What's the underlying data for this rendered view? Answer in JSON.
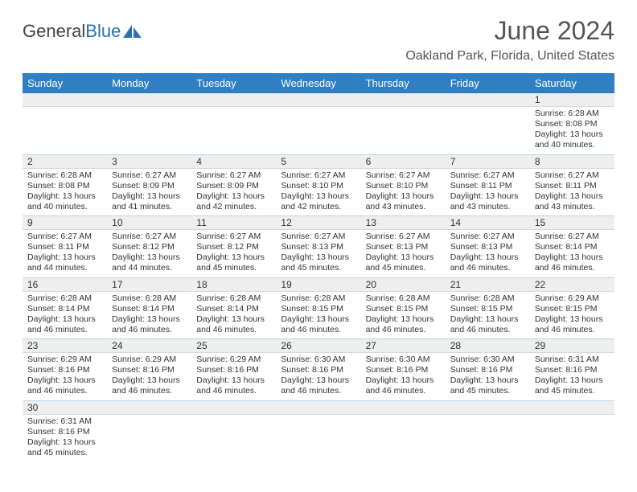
{
  "brand": {
    "part1": "General",
    "part2": "Blue"
  },
  "title": "June 2024",
  "location": "Oakland Park, Florida, United States",
  "colors": {
    "header_bg": "#2f7fc2",
    "header_text": "#ffffff",
    "grid_border": "#c0d4e6",
    "daynum_bg": "#eeeeee",
    "text": "#333333",
    "brand_accent": "#2b6fb6"
  },
  "weekdays": [
    "Sunday",
    "Monday",
    "Tuesday",
    "Wednesday",
    "Thursday",
    "Friday",
    "Saturday"
  ],
  "weeks": [
    [
      null,
      null,
      null,
      null,
      null,
      null,
      {
        "n": "1",
        "sunrise": "Sunrise: 6:28 AM",
        "sunset": "Sunset: 8:08 PM",
        "daylight": "Daylight: 13 hours and 40 minutes."
      }
    ],
    [
      {
        "n": "2",
        "sunrise": "Sunrise: 6:28 AM",
        "sunset": "Sunset: 8:08 PM",
        "daylight": "Daylight: 13 hours and 40 minutes."
      },
      {
        "n": "3",
        "sunrise": "Sunrise: 6:27 AM",
        "sunset": "Sunset: 8:09 PM",
        "daylight": "Daylight: 13 hours and 41 minutes."
      },
      {
        "n": "4",
        "sunrise": "Sunrise: 6:27 AM",
        "sunset": "Sunset: 8:09 PM",
        "daylight": "Daylight: 13 hours and 42 minutes."
      },
      {
        "n": "5",
        "sunrise": "Sunrise: 6:27 AM",
        "sunset": "Sunset: 8:10 PM",
        "daylight": "Daylight: 13 hours and 42 minutes."
      },
      {
        "n": "6",
        "sunrise": "Sunrise: 6:27 AM",
        "sunset": "Sunset: 8:10 PM",
        "daylight": "Daylight: 13 hours and 43 minutes."
      },
      {
        "n": "7",
        "sunrise": "Sunrise: 6:27 AM",
        "sunset": "Sunset: 8:11 PM",
        "daylight": "Daylight: 13 hours and 43 minutes."
      },
      {
        "n": "8",
        "sunrise": "Sunrise: 6:27 AM",
        "sunset": "Sunset: 8:11 PM",
        "daylight": "Daylight: 13 hours and 43 minutes."
      }
    ],
    [
      {
        "n": "9",
        "sunrise": "Sunrise: 6:27 AM",
        "sunset": "Sunset: 8:11 PM",
        "daylight": "Daylight: 13 hours and 44 minutes."
      },
      {
        "n": "10",
        "sunrise": "Sunrise: 6:27 AM",
        "sunset": "Sunset: 8:12 PM",
        "daylight": "Daylight: 13 hours and 44 minutes."
      },
      {
        "n": "11",
        "sunrise": "Sunrise: 6:27 AM",
        "sunset": "Sunset: 8:12 PM",
        "daylight": "Daylight: 13 hours and 45 minutes."
      },
      {
        "n": "12",
        "sunrise": "Sunrise: 6:27 AM",
        "sunset": "Sunset: 8:13 PM",
        "daylight": "Daylight: 13 hours and 45 minutes."
      },
      {
        "n": "13",
        "sunrise": "Sunrise: 6:27 AM",
        "sunset": "Sunset: 8:13 PM",
        "daylight": "Daylight: 13 hours and 45 minutes."
      },
      {
        "n": "14",
        "sunrise": "Sunrise: 6:27 AM",
        "sunset": "Sunset: 8:13 PM",
        "daylight": "Daylight: 13 hours and 46 minutes."
      },
      {
        "n": "15",
        "sunrise": "Sunrise: 6:27 AM",
        "sunset": "Sunset: 8:14 PM",
        "daylight": "Daylight: 13 hours and 46 minutes."
      }
    ],
    [
      {
        "n": "16",
        "sunrise": "Sunrise: 6:28 AM",
        "sunset": "Sunset: 8:14 PM",
        "daylight": "Daylight: 13 hours and 46 minutes."
      },
      {
        "n": "17",
        "sunrise": "Sunrise: 6:28 AM",
        "sunset": "Sunset: 8:14 PM",
        "daylight": "Daylight: 13 hours and 46 minutes."
      },
      {
        "n": "18",
        "sunrise": "Sunrise: 6:28 AM",
        "sunset": "Sunset: 8:14 PM",
        "daylight": "Daylight: 13 hours and 46 minutes."
      },
      {
        "n": "19",
        "sunrise": "Sunrise: 6:28 AM",
        "sunset": "Sunset: 8:15 PM",
        "daylight": "Daylight: 13 hours and 46 minutes."
      },
      {
        "n": "20",
        "sunrise": "Sunrise: 6:28 AM",
        "sunset": "Sunset: 8:15 PM",
        "daylight": "Daylight: 13 hours and 46 minutes."
      },
      {
        "n": "21",
        "sunrise": "Sunrise: 6:28 AM",
        "sunset": "Sunset: 8:15 PM",
        "daylight": "Daylight: 13 hours and 46 minutes."
      },
      {
        "n": "22",
        "sunrise": "Sunrise: 6:29 AM",
        "sunset": "Sunset: 8:15 PM",
        "daylight": "Daylight: 13 hours and 46 minutes."
      }
    ],
    [
      {
        "n": "23",
        "sunrise": "Sunrise: 6:29 AM",
        "sunset": "Sunset: 8:16 PM",
        "daylight": "Daylight: 13 hours and 46 minutes."
      },
      {
        "n": "24",
        "sunrise": "Sunrise: 6:29 AM",
        "sunset": "Sunset: 8:16 PM",
        "daylight": "Daylight: 13 hours and 46 minutes."
      },
      {
        "n": "25",
        "sunrise": "Sunrise: 6:29 AM",
        "sunset": "Sunset: 8:16 PM",
        "daylight": "Daylight: 13 hours and 46 minutes."
      },
      {
        "n": "26",
        "sunrise": "Sunrise: 6:30 AM",
        "sunset": "Sunset: 8:16 PM",
        "daylight": "Daylight: 13 hours and 46 minutes."
      },
      {
        "n": "27",
        "sunrise": "Sunrise: 6:30 AM",
        "sunset": "Sunset: 8:16 PM",
        "daylight": "Daylight: 13 hours and 46 minutes."
      },
      {
        "n": "28",
        "sunrise": "Sunrise: 6:30 AM",
        "sunset": "Sunset: 8:16 PM",
        "daylight": "Daylight: 13 hours and 45 minutes."
      },
      {
        "n": "29",
        "sunrise": "Sunrise: 6:31 AM",
        "sunset": "Sunset: 8:16 PM",
        "daylight": "Daylight: 13 hours and 45 minutes."
      }
    ],
    [
      {
        "n": "30",
        "sunrise": "Sunrise: 6:31 AM",
        "sunset": "Sunset: 8:16 PM",
        "daylight": "Daylight: 13 hours and 45 minutes."
      },
      null,
      null,
      null,
      null,
      null,
      null
    ]
  ]
}
